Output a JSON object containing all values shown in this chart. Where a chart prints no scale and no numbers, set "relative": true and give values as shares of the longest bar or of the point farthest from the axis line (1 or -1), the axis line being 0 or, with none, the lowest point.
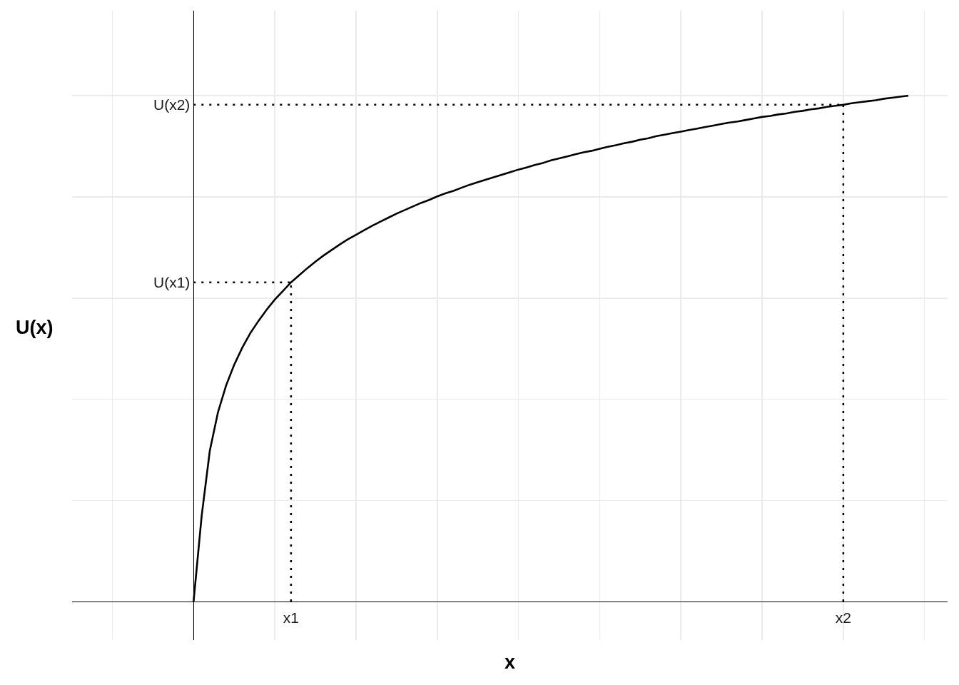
{
  "chart_data": {
    "type": "line",
    "xlabel": "x",
    "annotations": [
      "U(x)"
    ],
    "relative": true,
    "categories": [
      null,
      null,
      null,
      null,
      null,
      null,
      null,
      null,
      null,
      null,
      null,
      null,
      "x1",
      null,
      null,
      null,
      null,
      null,
      null,
      null,
      null,
      null,
      null,
      null,
      null,
      null,
      null,
      null,
      null,
      null,
      null,
      null,
      null,
      null,
      null,
      null,
      null,
      null,
      null,
      null,
      null,
      null,
      null,
      null,
      null,
      null,
      null,
      null,
      null,
      null,
      null,
      null,
      null,
      null,
      null,
      null,
      null,
      null,
      null,
      null,
      null,
      null,
      null,
      null,
      null,
      null,
      null,
      null,
      null,
      null,
      null,
      null,
      null,
      null,
      null,
      null,
      null,
      null,
      null,
      null,
      "x2",
      null,
      null,
      null,
      null,
      null,
      null,
      null,
      null
    ],
    "series": [
      {
        "color": "#000000",
        "values": [
          0,
          0.17,
          0.298,
          0.374,
          0.427,
          0.468,
          0.502,
          0.531,
          0.555,
          0.577,
          0.597,
          0.614,
          0.631,
          0.645,
          0.659,
          0.672,
          0.684,
          0.695,
          0.706,
          0.716,
          0.725,
          0.734,
          0.743,
          0.751,
          0.759,
          0.767,
          0.774,
          0.781,
          0.788,
          0.794,
          0.801,
          0.807,
          0.812,
          0.818,
          0.824,
          0.829,
          0.834,
          0.839,
          0.844,
          0.849,
          0.854,
          0.858,
          0.863,
          0.867,
          0.872,
          0.876,
          0.88,
          0.884,
          0.888,
          0.891,
          0.895,
          0.899,
          0.902,
          0.906,
          0.909,
          0.913,
          0.916,
          0.92,
          0.923,
          0.926,
          0.929,
          0.932,
          0.935,
          0.938,
          0.941,
          0.944,
          0.947,
          0.949,
          0.952,
          0.955,
          0.958,
          0.96,
          0.963,
          0.965,
          0.968,
          0.97,
          0.973,
          0.975,
          0.978,
          0.98,
          0.982,
          0.985,
          0.987,
          0.989,
          0.991,
          0.994,
          0.996,
          0.998,
          1
        ]
      }
    ],
    "ref_lines": [
      {
        "axis": "x",
        "value": "x1",
        "color": "#000000",
        "line_style": "dotted"
      },
      {
        "axis": "x",
        "value": "x2",
        "color": "#000000",
        "line_style": "dotted"
      },
      {
        "axis": "y",
        "value": 0.631,
        "label": "U(x1)",
        "color": "#000000",
        "line_style": "dotted"
      },
      {
        "axis": "y",
        "value": 0.982,
        "label": "U(x2)",
        "color": "#000000",
        "line_style": "dotted"
      }
    ],
    "tick_labels": "x",
    "grid": true,
    "line_style": "solid"
  }
}
